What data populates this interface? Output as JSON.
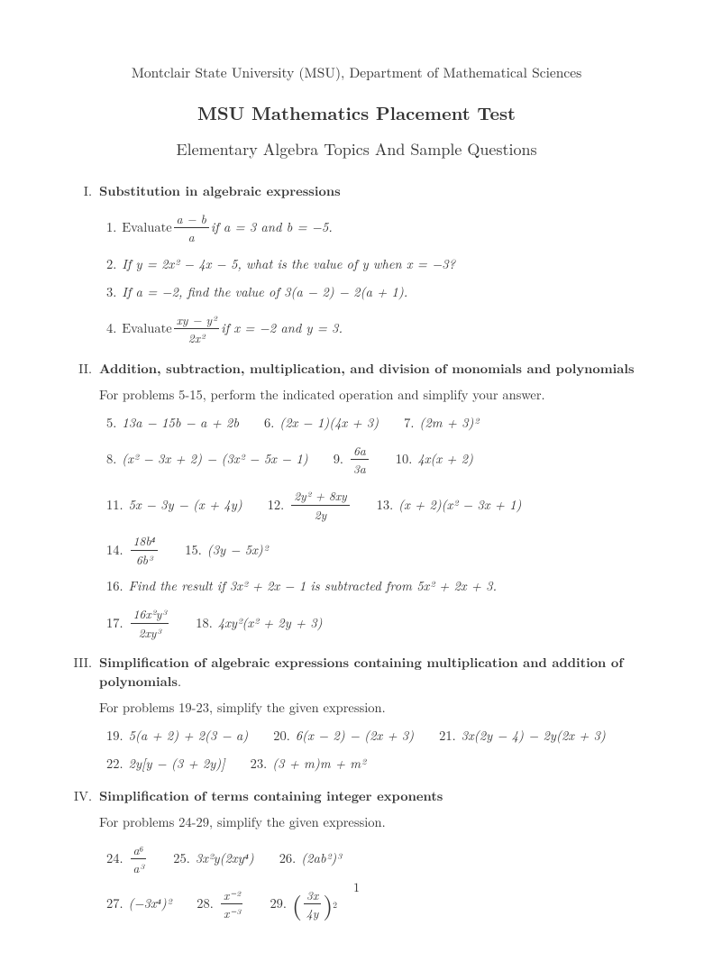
{
  "header": "Montclair State University (MSU), Department of Mathematical Sciences",
  "title": "MSU Mathematics Placement Test",
  "subtitle": "Elementary Algebra Topics And Sample Questions",
  "page_number": "1",
  "sections": {
    "s1": {
      "roman": "I.",
      "head": "Substitution in algebraic expressions"
    },
    "s2": {
      "roman": "II.",
      "head": "Addition, subtraction, multiplication, and division of monomials and polynomials",
      "intro": "For problems 5-15, perform the indicated operation and simplify your answer."
    },
    "s3": {
      "roman": "III.",
      "head": "Simplification of algebraic expressions containing multiplication and addition of polynomials",
      "intro": "For problems 19-23, simplify the given expression."
    },
    "s4": {
      "roman": "IV.",
      "head": "Simplification of terms containing integer exponents",
      "intro": "For problems 24-29, simplify the given expression."
    }
  },
  "q": {
    "n1": "1.",
    "n2": "2.",
    "n3": "3.",
    "n4": "4.",
    "n5": "5.",
    "n6": "6.",
    "n7": "7.",
    "n8": "8.",
    "n9": "9.",
    "n10": "10.",
    "n11": "11.",
    "n12": "12.",
    "n13": "13.",
    "n14": "14.",
    "n15": "15.",
    "n16": "16.",
    "n17": "17.",
    "n18": "18.",
    "n19": "19.",
    "n20": "20.",
    "n21": "21.",
    "n22": "22.",
    "n23": "23.",
    "n24": "24.",
    "n25": "25.",
    "n26": "26.",
    "n27": "27.",
    "n28": "28.",
    "n29": "29."
  },
  "txt": {
    "q1_pre": "Evaluate ",
    "q1_num": "a − b",
    "q1_den": "a",
    "q1_post": " if a = 3 and b = −5.",
    "q2": "If y = 2x² − 4x − 5, what is the value of y when x = −3?",
    "q3": "If a = −2, find the value of 3(a − 2) − 2(a + 1).",
    "q4_pre": "Evaluate ",
    "q4_num": "xy − y²",
    "q4_den": "2x²",
    "q4_post": " if x = −2 and y = 3.",
    "q5": "13a − 15b − a + 2b",
    "q6": "(2x − 1)(4x + 3)",
    "q7": "(2m + 3)²",
    "q8": "(x² − 3x + 2) − (3x² − 5x − 1)",
    "q9_num": "6a",
    "q9_den": "3a",
    "q10": "4x(x + 2)",
    "q11": "5x − 3y − (x + 4y)",
    "q12_num": "2y² + 8xy",
    "q12_den": "2y",
    "q13": "(x + 2)(x² − 3x + 1)",
    "q14_num": "18b⁴",
    "q14_den": "6b³",
    "q15": "(3y − 5x)²",
    "q16": "Find the result if 3x² + 2x − 1 is subtracted from 5x² + 2x + 3.",
    "q17_num": "16x²y³",
    "q17_den": "2xy³",
    "q18": "4xy²(x² + 2y + 3)",
    "q19": "5(a + 2) + 2(3 − a)",
    "q20": "6(x − 2) − (2x + 3)",
    "q21": "3x(2y − 4) − 2y(2x + 3)",
    "q22": "2y[y − (3 + 2y)]",
    "q23": "(3 + m)m + m²",
    "q24_num": "a⁶",
    "q24_den": "a³",
    "q25": "3x²y(2xy⁴)",
    "q26": "(2ab²)³",
    "q27": "(−3x⁴)²",
    "q28_num": "x⁻²",
    "q28_den": "x⁻³",
    "q29_num": "3x",
    "q29_den": "4y",
    "q29_exp": "2"
  }
}
